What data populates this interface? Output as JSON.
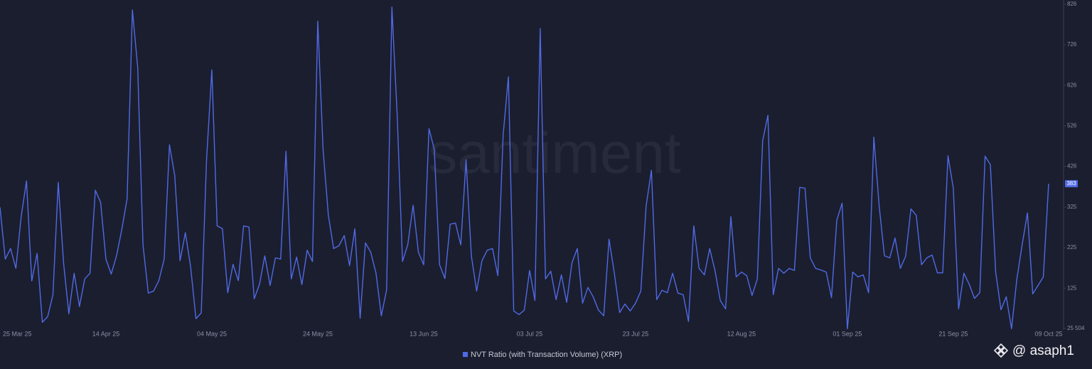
{
  "chart_data": {
    "type": "line",
    "watermark": "santiment",
    "attribution": "@ asaph1",
    "categories": [
      "25 Mar 25",
      null,
      null,
      null,
      null,
      null,
      null,
      null,
      null,
      null,
      null,
      null,
      null,
      null,
      null,
      null,
      null,
      null,
      null,
      null,
      "14 Apr 25",
      null,
      null,
      null,
      null,
      null,
      null,
      null,
      null,
      null,
      null,
      null,
      null,
      null,
      null,
      null,
      null,
      null,
      null,
      null,
      "04 May 25",
      null,
      null,
      null,
      null,
      null,
      null,
      null,
      null,
      null,
      null,
      null,
      null,
      null,
      null,
      null,
      null,
      null,
      null,
      null,
      "24 May 25",
      null,
      null,
      null,
      null,
      null,
      null,
      null,
      null,
      null,
      null,
      null,
      null,
      null,
      null,
      null,
      null,
      null,
      null,
      null,
      "13 Jun 25",
      null,
      null,
      null,
      null,
      null,
      null,
      null,
      null,
      null,
      null,
      null,
      null,
      null,
      null,
      null,
      null,
      null,
      null,
      null,
      "03 Jul 25",
      null,
      null,
      null,
      null,
      null,
      null,
      null,
      null,
      null,
      null,
      null,
      null,
      null,
      null,
      null,
      null,
      null,
      null,
      null,
      "23 Jul 25",
      null,
      null,
      null,
      null,
      null,
      null,
      null,
      null,
      null,
      null,
      null,
      null,
      null,
      null,
      null,
      null,
      null,
      null,
      null,
      "12 Aug 25",
      null,
      null,
      null,
      null,
      null,
      null,
      null,
      null,
      null,
      null,
      null,
      null,
      null,
      null,
      null,
      null,
      null,
      null,
      null,
      "01 Sep 25",
      null,
      null,
      null,
      null,
      null,
      null,
      null,
      null,
      null,
      null,
      null,
      null,
      null,
      null,
      null,
      null,
      null,
      null,
      null,
      "21 Sep 25",
      null,
      null,
      null,
      null,
      null,
      null,
      null,
      null,
      null,
      null,
      null,
      null,
      null,
      null,
      null,
      null,
      null,
      "09 Oct 25"
    ],
    "series": [
      {
        "name": "NVT Ratio (with Transaction Volume) (XRP)",
        "color": "#4f6ae6",
        "values": [
          325,
          197,
          223,
          174,
          302,
          390,
          143,
          211,
          41,
          55,
          109,
          386,
          188,
          62,
          162,
          80,
          148,
          162,
          367,
          337,
          197,
          160,
          205,
          270,
          346,
          812,
          670,
          232,
          113,
          118,
          144,
          197,
          479,
          403,
          193,
          262,
          177,
          50,
          64,
          442,
          664,
          279,
          272,
          114,
          184,
          144,
          279,
          276,
          99,
          135,
          205,
          132,
          200,
          197,
          463,
          148,
          202,
          134,
          219,
          191,
          784,
          468,
          305,
          223,
          230,
          255,
          181,
          272,
          51,
          237,
          214,
          162,
          57,
          121,
          819,
          551,
          191,
          233,
          330,
          214,
          183,
          519,
          468,
          183,
          149,
          283,
          286,
          232,
          442,
          205,
          118,
          193,
          219,
          223,
          156,
          503,
          647,
          69,
          60,
          71,
          169,
          95,
          766,
          148,
          167,
          97,
          158,
          90,
          188,
          223,
          88,
          127,
          104,
          71,
          57,
          246,
          162,
          65,
          86,
          69,
          88,
          118,
          328,
          416,
          97,
          120,
          114,
          162,
          113,
          109,
          43,
          279,
          174,
          158,
          223,
          169,
          95,
          74,
          302,
          153,
          165,
          156,
          107,
          148,
          489,
          552,
          109,
          174,
          162,
          174,
          169,
          374,
          372,
          200,
          174,
          170,
          165,
          102,
          293,
          335,
          25,
          165,
          153,
          158,
          114,
          498,
          328,
          205,
          200,
          249,
          174,
          204,
          321,
          305,
          183,
          200,
          207,
          163,
          163,
          452,
          372,
          74,
          162,
          135,
          100,
          114,
          451,
          430,
          165,
          72,
          104,
          25,
          148,
          232,
          311,
          111,
          132,
          153,
          383
        ]
      }
    ],
    "ylim": [
      25.504,
      826
    ],
    "yticks": [
      {
        "value": 25.504,
        "label": "25 504"
      },
      125,
      225,
      325,
      426,
      526,
      626,
      726,
      826
    ]
  }
}
